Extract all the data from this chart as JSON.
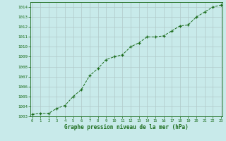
{
  "x": [
    0,
    1,
    2,
    3,
    4,
    5,
    6,
    7,
    8,
    9,
    10,
    11,
    12,
    13,
    14,
    15,
    16,
    17,
    18,
    19,
    20,
    21,
    22,
    23
  ],
  "y": [
    1003.2,
    1003.3,
    1003.3,
    1003.8,
    1004.1,
    1005.0,
    1005.7,
    1007.1,
    1007.8,
    1008.7,
    1009.0,
    1009.2,
    1010.0,
    1010.4,
    1011.0,
    1011.0,
    1011.1,
    1011.6,
    1012.1,
    1012.2,
    1013.0,
    1013.5,
    1014.0,
    1014.2
  ],
  "ylim_min": 1003.0,
  "ylim_max": 1014.5,
  "xlim_min": -0.2,
  "xlim_max": 23.2,
  "yticks": [
    1003,
    1004,
    1005,
    1006,
    1007,
    1008,
    1009,
    1010,
    1011,
    1012,
    1013,
    1014
  ],
  "xticks": [
    0,
    1,
    2,
    3,
    4,
    5,
    6,
    7,
    8,
    9,
    10,
    11,
    12,
    13,
    14,
    15,
    16,
    17,
    18,
    19,
    20,
    21,
    22,
    23
  ],
  "line_color": "#1a6b1a",
  "marker": "+",
  "bg_color": "#c8eaea",
  "grid_color": "#b0c8c8",
  "xlabel": "Graphe pression niveau de la mer (hPa)",
  "xlabel_color": "#1a6b1a",
  "tick_color": "#1a6b1a",
  "spine_color": "#1a6b1a",
  "font_family": "monospace"
}
